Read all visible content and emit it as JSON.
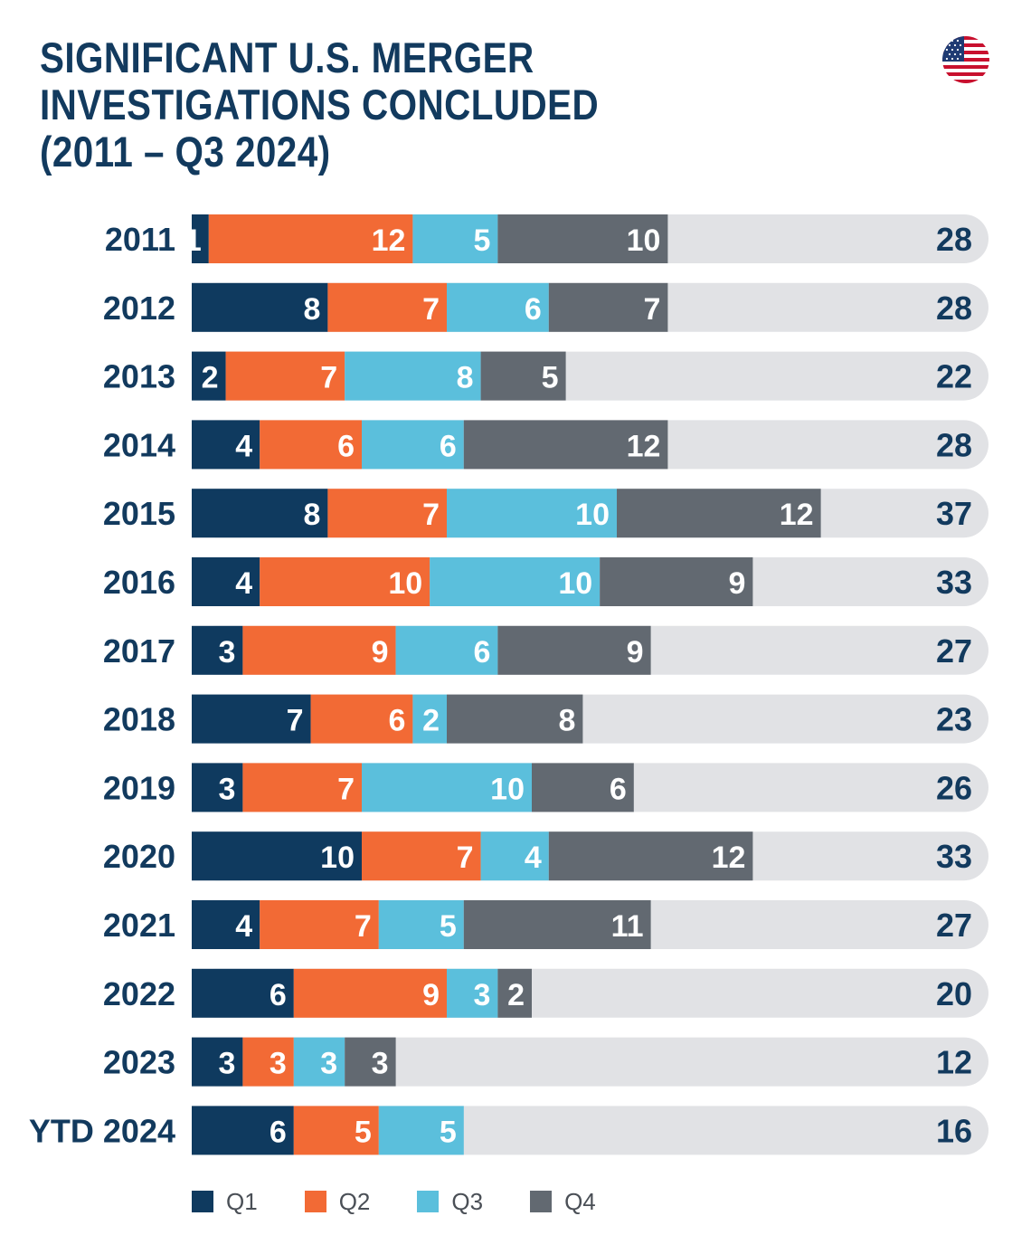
{
  "title_lines": [
    "SIGNIFICANT U.S. MERGER",
    "INVESTIGATIONS CONCLUDED",
    "(2011 – Q3 2024)"
  ],
  "flag_icon": "us-flag-icon",
  "colors": {
    "q1": "#0f3a5f",
    "q2": "#f26a35",
    "q3": "#5bbfdc",
    "q4": "#626971",
    "track": "#e1e2e5",
    "label": "#123a5e",
    "bar_text": "#ffffff"
  },
  "legend": {
    "q1": "Q1",
    "q2": "Q2",
    "q3": "Q3",
    "q4": "Q4"
  },
  "chart_data": {
    "type": "bar",
    "orientation": "horizontal",
    "stacked": true,
    "title": "SIGNIFICANT U.S. MERGER INVESTIGATIONS CONCLUDED (2011 – Q3 2024)",
    "categories": [
      "2011",
      "2012",
      "2013",
      "2014",
      "2015",
      "2016",
      "2017",
      "2018",
      "2019",
      "2020",
      "2021",
      "2022",
      "2023",
      "YTD 2024"
    ],
    "series": [
      {
        "name": "Q1",
        "values": [
          1,
          8,
          2,
          4,
          8,
          4,
          3,
          7,
          3,
          10,
          4,
          6,
          3,
          6
        ]
      },
      {
        "name": "Q2",
        "values": [
          12,
          7,
          7,
          6,
          7,
          10,
          9,
          6,
          7,
          7,
          7,
          9,
          3,
          5
        ]
      },
      {
        "name": "Q3",
        "values": [
          5,
          6,
          8,
          6,
          10,
          10,
          6,
          2,
          10,
          4,
          5,
          3,
          3,
          5
        ]
      },
      {
        "name": "Q4",
        "values": [
          10,
          7,
          5,
          12,
          12,
          9,
          9,
          8,
          6,
          12,
          11,
          2,
          3,
          null
        ]
      }
    ],
    "totals": [
      28,
      28,
      22,
      28,
      37,
      33,
      27,
      23,
      26,
      33,
      27,
      20,
      12,
      16
    ],
    "xlim": [
      0,
      47
    ],
    "legend_position": "bottom",
    "grid": false
  }
}
